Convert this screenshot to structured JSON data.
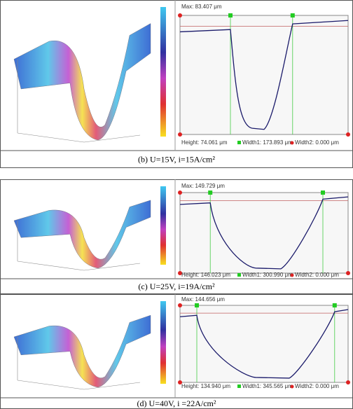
{
  "panels": [
    {
      "max": "Max: 83.407 μm",
      "height": "Height: 74.061 μm",
      "width1": "Width1: 173.893 μm",
      "width2": "Width2: 0.000 μm",
      "caption": "(b) U=15V, i=15A/cm²"
    },
    {
      "max": "Max: 149.729 μm",
      "height": "Height: 146.023 μm",
      "width1": "Width1: 300.990 μm",
      "width2": "Width2: 0.000 μm",
      "caption": "(c) U=25V, i=19A/cm²"
    },
    {
      "max": "Max: 144.656 μm",
      "height": "Height: 134.940 μm",
      "width1": "Width1: 345.565 μm",
      "width2": "Width2: 0.000 μm",
      "caption": "(d) U=40V, i =22A/cm²"
    }
  ]
}
